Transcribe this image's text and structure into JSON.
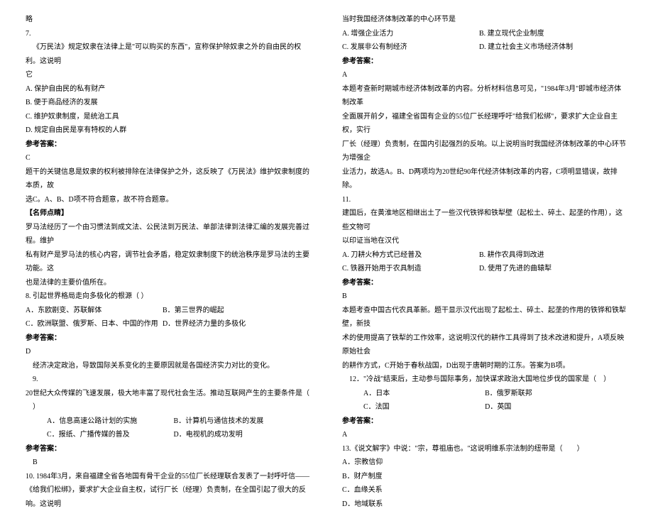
{
  "left": {
    "l0": "略",
    "q7_num": "7.",
    "q7_stem1": "《万民法》规定奴隶在法律上是\"可以购买的东西\"，宣称保护除奴隶之外的自由民的权利。这说明",
    "q7_stem2": "它",
    "q7_a": "A. 保护自由民的私有财产",
    "q7_b": "B. 便于商品经济的发展",
    "q7_c": "C. 维护奴隶制度，是统治工具",
    "q7_d": "D. 规定自由民是享有特权的人群",
    "ans_label": "参考答案：",
    "q7_ans": "C",
    "q7_exp1": "题干的关键信息是奴隶的权利被排除在法律保护之外，这反映了《万民法》维护奴隶制度的本质，故",
    "q7_exp2": "选C。A、B、D项不符合题意，故不符合题意。",
    "tip_label": "【名师点睛】",
    "q7_tip1": "罗马法经历了一个由习惯法到成文法、公民法到万民法、单部法律到法律汇编的发展完善过程。维护",
    "q7_tip2": "私有财产是罗马法的核心内容，调节社会矛盾，稳定奴隶制度下的统治秩序是罗马法的主要功能。这",
    "q7_tip3": "也是法律的主要价值所在。",
    "q8_stem": "8. 引起世界格局走向多极化的根源（ ）",
    "q8_a": "A．东欧剧变、苏联解体",
    "q8_b": "B．第三世界的崛起",
    "q8_c": "C．欧洲联盟、俄罗斯、日本、中国的作用",
    "q8_d": "D．世界经济力量的多极化",
    "q8_ans": "D",
    "q8_exp": "经济决定政治，导致国际关系变化的主要原因就是各国经济实力对比的变化。",
    "q9_num": "9.",
    "q9_stem1": "20世纪大众传媒的飞速发展，极大地丰富了现代社会生活。推动互联网产生的主要条件是（",
    "q9_stem2": "　）",
    "q9_a": "A．信息高速公路计划的实施",
    "q9_b": "B．计算机与通信技术的发展",
    "q9_c": "C．报纸、广播传媒的普及",
    "q9_d": "D．电视机的成功发明",
    "q9_ans": "B",
    "q10_stem1": "10. 1984年3月，来自福建全省各地国有骨干企业的55位厂长经理联合发表了一封呼吁信——",
    "q10_stem2": "《给我们松绑》，要求扩大企业自主权，试行厂长（经理）负责制，在全国引起了很大的反响。这说明"
  },
  "right": {
    "q10_cont": "当时我国经济体制改革的中心环节是",
    "q10_a": "A. 增强企业活力",
    "q10_b": "B. 建立现代企业制度",
    "q10_c": "C. 发展非公有制经济",
    "q10_d": "D. 建立社会主义市场经济体制",
    "ans_label": "参考答案：",
    "q10_ans": "A",
    "q10_exp1": "本题考查新时期城市经济体制改革的内容。分析材料信息可见，\"1984年3月\"即城市经济体制改革",
    "q10_exp2": "全面展开前夕，福建全省国有企业的55位厂长经理呼吁\"给我们松绑\"，要求扩大企业自主权，实行",
    "q10_exp3": "厂长（经理）负责制，在国内引起强烈的反响。以上说明当时我国经济体制改革的中心环节为增强企",
    "q10_exp4": "业活力，故选A。B、D两项均为20世纪90年代经济体制改革的内容，C项明显错误，故排除。",
    "q11_num": "11.",
    "q11_stem1": "建国后，在黄淮地区相继出土了一些汉代铁铧和铁犁壁（起松土、碎土、起垄的作用），这些文物可",
    "q11_stem2": "以印证当地在汉代",
    "q11_a": "A. 刀耕火种方式已经普及",
    "q11_b": "B. 耕作农具得到改进",
    "q11_c": "C. 铁器开始用于农具制造",
    "q11_d": "D. 使用了先进的曲辕犁",
    "q11_ans": "B",
    "q11_exp1": "本题考查中国古代农具革新。题干显示汉代出现了起松土、碎土、起垄的作用的铁铧和铁犁壁，新技",
    "q11_exp2": "术的使用提高了铁犁的工作效率，这说明汉代的耕作工具得到了技术改进和提升，A项反映原始社会",
    "q11_exp3": "的耕作方式，C开始于春秋战国，D出现于唐朝时期的江东。答案为B项。",
    "q12_stem": "12．\"冷战\"结束后，主动参与国际事务，加快谋求政治大国地位步伐的国家是（　）",
    "q12_a": "A．日本",
    "q12_b": "B．俄罗斯联邦",
    "q12_c": "C．法国",
    "q12_d": "D．英国",
    "q12_ans": "A",
    "q13_stem": "13.《说文解字》中说：\"宗，尊祖庙也。\"这说明维系宗法制的纽带是（　　）",
    "q13_a": "A．宗教信仰",
    "q13_b": "B．财产制度",
    "q13_c": "C．血缘关系",
    "q13_d": "D．地域联系"
  }
}
